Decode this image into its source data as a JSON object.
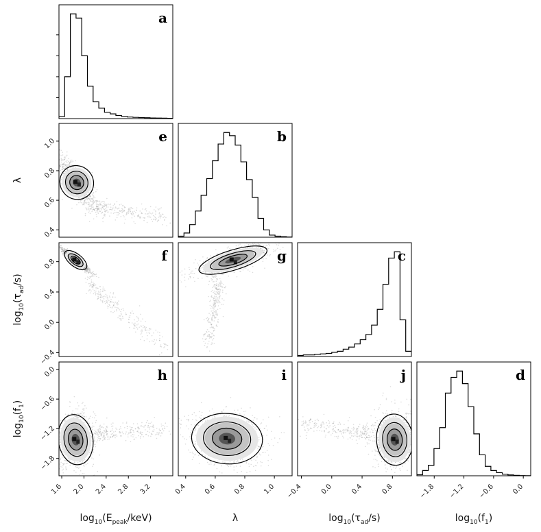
{
  "chart_data": {
    "type": "corner",
    "parameters": [
      "log10(E_peak/keV)",
      "λ",
      "log10(τ_ad/s)",
      "log10(f_1)"
    ],
    "axis_labels": [
      {
        "pre": "log",
        "sub1": "10",
        "mid": "(E",
        "sub2": "peak",
        "post": "/keV)"
      },
      {
        "pre": "λ",
        "sub1": "",
        "mid": "",
        "sub2": "",
        "post": ""
      },
      {
        "pre": "log",
        "sub1": "10",
        "mid": "(τ",
        "sub2": "ad",
        "post": "/s)"
      },
      {
        "pre": "log",
        "sub1": "10",
        "mid": "(f",
        "sub2": "1",
        "post": ")"
      }
    ],
    "ranges": [
      [
        1.55,
        3.6
      ],
      [
        0.35,
        1.12
      ],
      [
        -0.45,
        1.05
      ],
      [
        -2.15,
        0.15
      ]
    ],
    "ticks": [
      {
        "values": [
          1.6,
          2.0,
          2.4,
          2.8,
          3.2
        ],
        "labels": [
          "1.6",
          "2.0",
          "2.4",
          "2.8",
          "3.2"
        ]
      },
      {
        "values": [
          0.4,
          0.6,
          0.8,
          1.0
        ],
        "labels": [
          "0.4",
          "0.6",
          "0.8",
          "1.0"
        ]
      },
      {
        "values": [
          -0.4,
          0.0,
          0.4,
          0.8
        ],
        "labels": [
          "−0.4",
          "0.0",
          "0.4",
          "0.8"
        ]
      },
      {
        "values": [
          -1.8,
          -1.2,
          -0.6,
          0.0
        ],
        "labels": [
          "−1.8",
          "−1.2",
          "−0.6",
          "0.0"
        ]
      }
    ],
    "histograms": [
      {
        "panel": "a",
        "param": 0,
        "edges_start": 1.55,
        "bin_width": 0.1025,
        "counts": [
          0.02,
          0.4,
          1.0,
          0.96,
          0.6,
          0.31,
          0.16,
          0.1,
          0.06,
          0.045,
          0.03,
          0.02,
          0.015,
          0.012,
          0.01,
          0.008,
          0.006,
          0.005,
          0.004,
          0.003
        ]
      },
      {
        "panel": "b",
        "param": 1,
        "edges_start": 0.35,
        "bin_width": 0.0385,
        "counts": [
          0.01,
          0.04,
          0.12,
          0.25,
          0.4,
          0.56,
          0.73,
          0.89,
          1.0,
          0.97,
          0.88,
          0.72,
          0.55,
          0.38,
          0.18,
          0.07,
          0.02,
          0.01,
          0.005,
          0.002
        ]
      },
      {
        "panel": "c",
        "param": 2,
        "edges_start": -0.45,
        "bin_width": 0.075,
        "counts": [
          0.01,
          0.015,
          0.015,
          0.02,
          0.025,
          0.03,
          0.04,
          0.05,
          0.07,
          0.09,
          0.12,
          0.16,
          0.21,
          0.3,
          0.45,
          0.69,
          0.94,
          1.0,
          0.35,
          0.05
        ]
      },
      {
        "panel": "d",
        "param": 3,
        "edges_start": -2.15,
        "bin_width": 0.115,
        "counts": [
          0.01,
          0.05,
          0.1,
          0.26,
          0.46,
          0.79,
          0.94,
          1.0,
          0.88,
          0.66,
          0.4,
          0.2,
          0.09,
          0.05,
          0.03,
          0.015,
          0.008,
          0.004,
          0.002,
          0.001
        ]
      }
    ],
    "scatter_panels": [
      {
        "panel": "e",
        "x": 0,
        "y": 1,
        "center": [
          1.87,
          0.72
        ],
        "sd": [
          0.13,
          0.07
        ],
        "corr": -0.8,
        "tail": {
          "x": [
            2.2,
            3.5
          ],
          "y": [
            0.56,
            0.48
          ]
        }
      },
      {
        "panel": "f",
        "x": 0,
        "y": 2,
        "center": [
          1.85,
          0.82
        ],
        "sd": [
          0.1,
          0.06
        ],
        "corr": -0.95,
        "tail": {
          "x": [
            2.1,
            3.5
          ],
          "y": [
            0.5,
            -0.35
          ]
        }
      },
      {
        "panel": "g",
        "x": 1,
        "y": 2,
        "center": [
          0.72,
          0.82
        ],
        "sd": [
          0.1,
          0.08
        ],
        "corr": 0.75,
        "tail": {
          "x": [
            0.62,
            0.55
          ],
          "y": [
            0.5,
            -0.3
          ]
        }
      },
      {
        "panel": "h",
        "x": 0,
        "y": 3,
        "center": [
          1.85,
          -1.42
        ],
        "sd": [
          0.13,
          0.22
        ],
        "corr": 0.1,
        "tail": {
          "x": [
            2.2,
            3.5
          ],
          "y": [
            -1.3,
            -1.2
          ]
        }
      },
      {
        "panel": "i",
        "x": 1,
        "y": 3,
        "center": [
          0.68,
          -1.4
        ],
        "sd": [
          0.1,
          0.22
        ],
        "corr": -0.1,
        "tail": null
      },
      {
        "panel": "j",
        "x": 2,
        "y": 3,
        "center": [
          0.83,
          -1.42
        ],
        "sd": [
          0.1,
          0.22
        ],
        "corr": 0.05,
        "tail": {
          "x": [
            0.5,
            -0.4
          ],
          "y": [
            -1.3,
            -1.1
          ]
        }
      }
    ],
    "panel_letters": [
      "a",
      "b",
      "c",
      "d",
      "e",
      "f",
      "g",
      "h",
      "i",
      "j"
    ]
  }
}
